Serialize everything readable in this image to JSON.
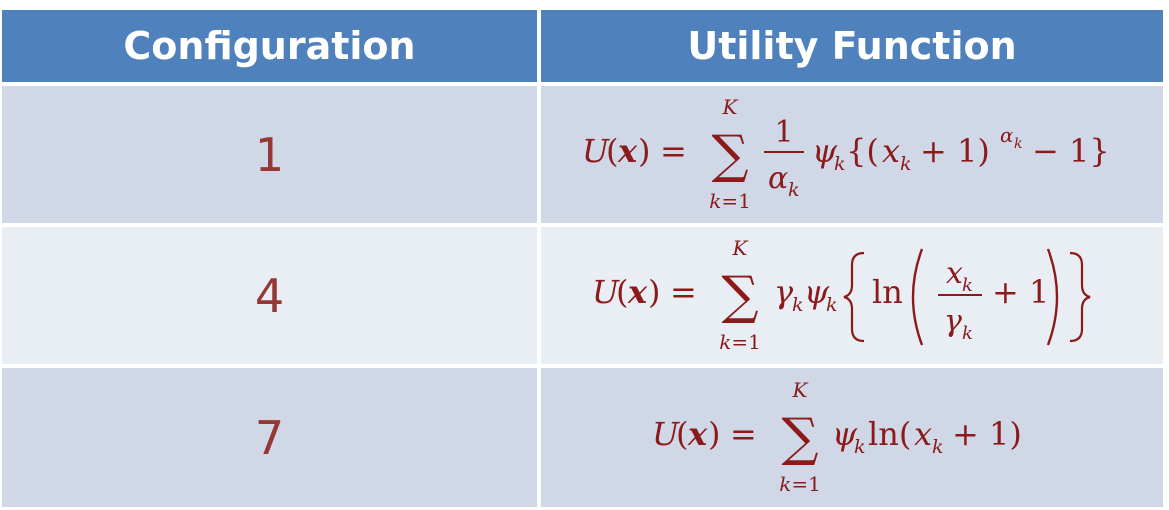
{
  "table": {
    "headers": [
      "Configuration",
      "Utility Function"
    ],
    "rows": [
      {
        "configuration": "1",
        "formula": {
          "lhs": "U(x) =",
          "sum_upper": "K",
          "sum_lower": "k=1",
          "frac_num": "1",
          "frac_den": "αk",
          "body": "ψk{(xk + 1)^αk − 1}"
        }
      },
      {
        "configuration": "4",
        "formula": {
          "lhs": "U(x) =",
          "sum_upper": "K",
          "sum_lower": "k=1",
          "body": "γkψk{ln(xk/γk + 1)}"
        }
      },
      {
        "configuration": "7",
        "formula": {
          "lhs": "U(x) =",
          "sum_upper": "K",
          "sum_lower": "k=1",
          "body": "ψk ln(xk + 1)"
        }
      }
    ]
  },
  "colors": {
    "header_bg": "#4f81bd",
    "header_text": "#ffffff",
    "row_dark": "#d0d8e8",
    "row_light": "#e9edf4",
    "number_text": "#953735",
    "formula_text": "#8b1a1a"
  }
}
